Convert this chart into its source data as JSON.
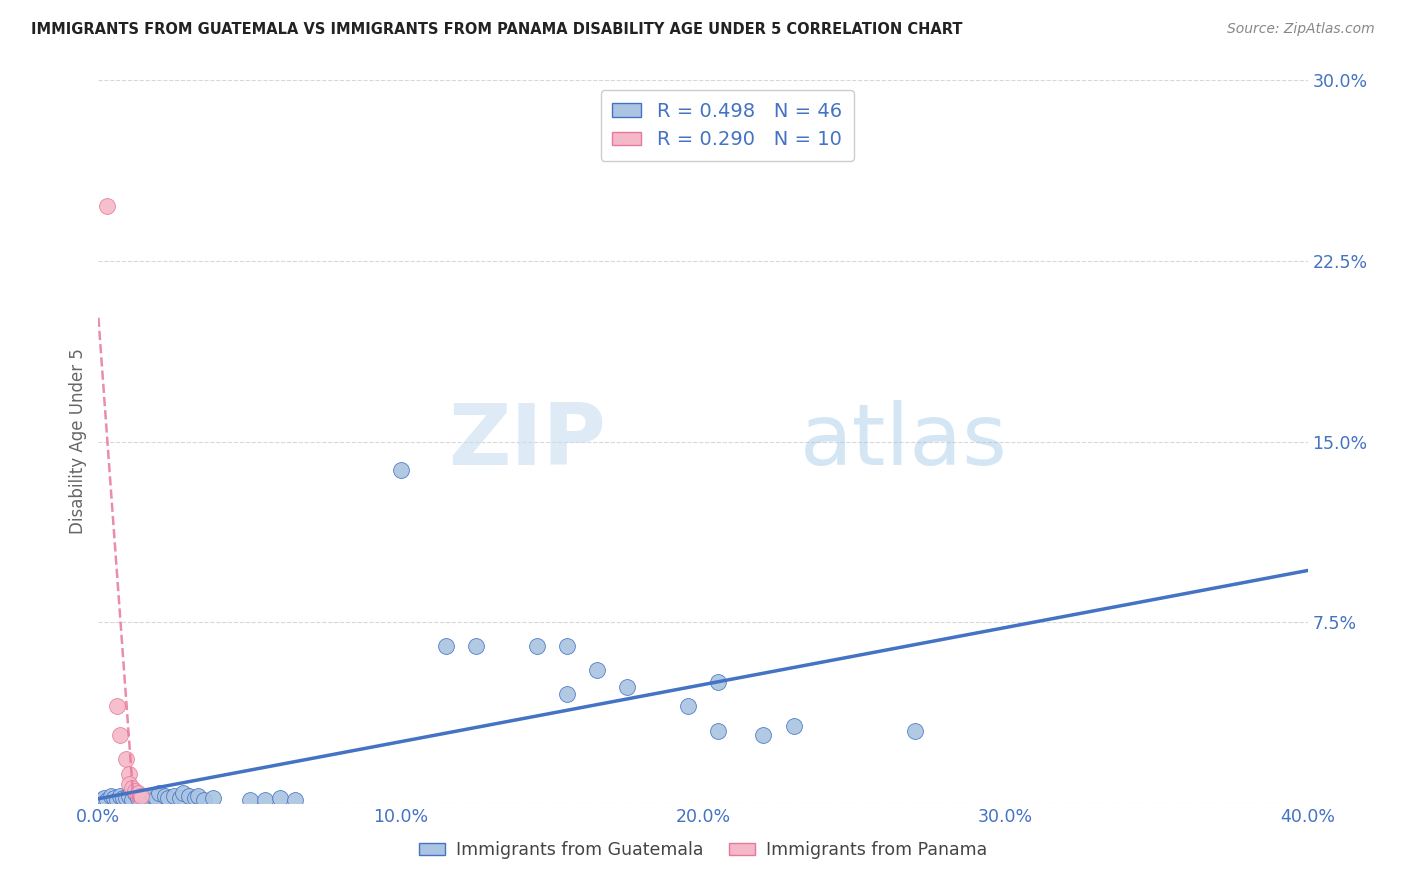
{
  "title": "IMMIGRANTS FROM GUATEMALA VS IMMIGRANTS FROM PANAMA DISABILITY AGE UNDER 5 CORRELATION CHART",
  "source": "Source: ZipAtlas.com",
  "ylabel": "Disability Age Under 5",
  "xlim": [
    0.0,
    0.4
  ],
  "ylim": [
    0.0,
    0.3
  ],
  "xticks": [
    0.0,
    0.1,
    0.2,
    0.3,
    0.4
  ],
  "xtick_labels": [
    "0.0%",
    "10.0%",
    "20.0%",
    "30.0%",
    "40.0%"
  ],
  "yticks": [
    0.0,
    0.075,
    0.15,
    0.225,
    0.3
  ],
  "ytick_labels": [
    "",
    "7.5%",
    "15.0%",
    "22.5%",
    "30.0%"
  ],
  "guatemala_R": 0.498,
  "guatemala_N": 46,
  "panama_R": 0.29,
  "panama_N": 10,
  "guatemala_color": "#aac4e2",
  "panama_color": "#f4b8c8",
  "trend_blue": "#4472c4",
  "trend_pink": "#e8789a",
  "legend_text_color": "#4472c4",
  "guatemala_scatter": [
    [
      0.001,
      0.001
    ],
    [
      0.002,
      0.002
    ],
    [
      0.003,
      0.001
    ],
    [
      0.004,
      0.003
    ],
    [
      0.005,
      0.002
    ],
    [
      0.006,
      0.001
    ],
    [
      0.007,
      0.003
    ],
    [
      0.008,
      0.002
    ],
    [
      0.009,
      0.002
    ],
    [
      0.01,
      0.003
    ],
    [
      0.011,
      0.001
    ],
    [
      0.012,
      0.004
    ],
    [
      0.013,
      0.002
    ],
    [
      0.015,
      0.003
    ],
    [
      0.016,
      0.002
    ],
    [
      0.018,
      0.003
    ],
    [
      0.019,
      0.002
    ],
    [
      0.02,
      0.004
    ],
    [
      0.022,
      0.003
    ],
    [
      0.023,
      0.002
    ],
    [
      0.025,
      0.003
    ],
    [
      0.027,
      0.002
    ],
    [
      0.028,
      0.004
    ],
    [
      0.03,
      0.003
    ],
    [
      0.032,
      0.002
    ],
    [
      0.033,
      0.003
    ],
    [
      0.035,
      0.001
    ],
    [
      0.038,
      0.002
    ],
    [
      0.05,
      0.001
    ],
    [
      0.055,
      0.001
    ],
    [
      0.06,
      0.002
    ],
    [
      0.065,
      0.001
    ],
    [
      0.1,
      0.138
    ],
    [
      0.115,
      0.065
    ],
    [
      0.125,
      0.065
    ],
    [
      0.145,
      0.065
    ],
    [
      0.155,
      0.065
    ],
    [
      0.155,
      0.045
    ],
    [
      0.165,
      0.055
    ],
    [
      0.175,
      0.048
    ],
    [
      0.195,
      0.04
    ],
    [
      0.205,
      0.05
    ],
    [
      0.205,
      0.03
    ],
    [
      0.22,
      0.028
    ],
    [
      0.23,
      0.032
    ],
    [
      0.27,
      0.03
    ]
  ],
  "panama_scatter": [
    [
      0.003,
      0.248
    ],
    [
      0.006,
      0.04
    ],
    [
      0.007,
      0.028
    ],
    [
      0.009,
      0.018
    ],
    [
      0.01,
      0.012
    ],
    [
      0.01,
      0.008
    ],
    [
      0.011,
      0.006
    ],
    [
      0.012,
      0.005
    ],
    [
      0.013,
      0.004
    ],
    [
      0.014,
      0.003
    ]
  ],
  "watermark_zip": "ZIP",
  "watermark_atlas": "atlas",
  "background_color": "#ffffff",
  "grid_color": "#d8d8d8",
  "legend_label_guatemala": "Immigrants from Guatemala",
  "legend_label_panama": "Immigrants from Panama"
}
